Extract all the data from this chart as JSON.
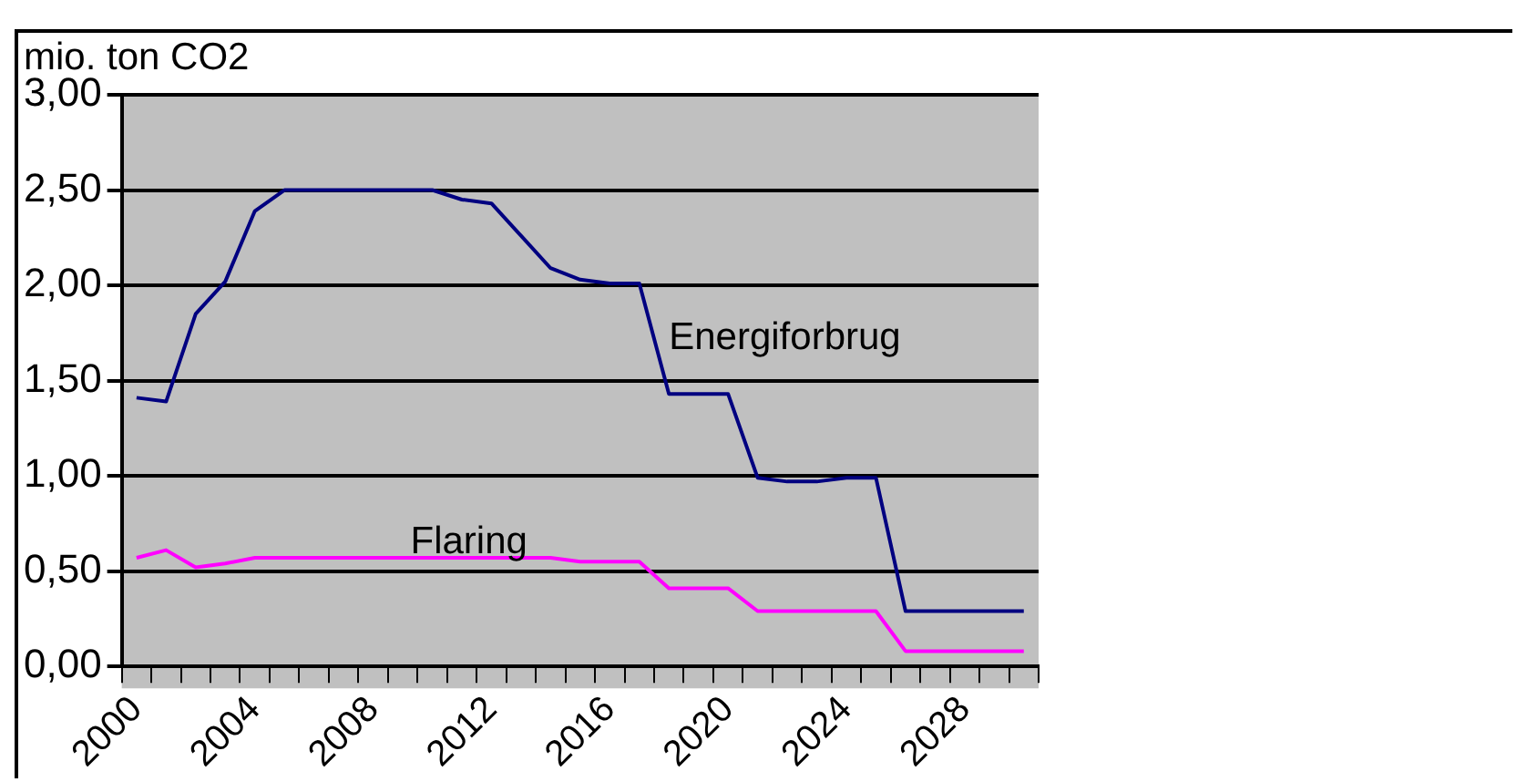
{
  "chart_data": {
    "type": "line",
    "ylabel": "mio. ton CO2",
    "categories": [
      "2000",
      null,
      null,
      null,
      "2004",
      null,
      null,
      null,
      "2008",
      null,
      null,
      null,
      "2012",
      null,
      null,
      null,
      "2016",
      null,
      null,
      null,
      "2020",
      null,
      null,
      null,
      "2024",
      null,
      null,
      null,
      "2028",
      null,
      null
    ],
    "series": [
      {
        "name": "Energiforbrug",
        "color": "#000080",
        "values": [
          1.41,
          1.39,
          1.85,
          2.02,
          2.39,
          2.5,
          2.5,
          2.5,
          2.5,
          2.5,
          2.5,
          2.45,
          2.43,
          2.26,
          2.09,
          2.03,
          2.01,
          2.01,
          1.43,
          1.43,
          1.43,
          0.99,
          0.97,
          0.97,
          0.99,
          0.99,
          0.29,
          0.29,
          0.29,
          0.29,
          0.29
        ]
      },
      {
        "name": "Flaring",
        "color": "#ff00ff",
        "values": [
          0.57,
          0.61,
          0.52,
          0.54,
          0.57,
          0.57,
          0.57,
          0.57,
          0.57,
          0.57,
          0.57,
          0.57,
          0.57,
          0.57,
          0.57,
          0.55,
          0.55,
          0.55,
          0.41,
          0.41,
          0.41,
          0.29,
          0.29,
          0.29,
          0.29,
          0.29,
          0.08,
          0.08,
          0.08,
          0.08,
          0.08
        ]
      }
    ],
    "ylim": [
      0,
      3
    ],
    "yticks": [
      {
        "value": 0,
        "label": "0,00"
      },
      {
        "value": 0.5,
        "label": "0,50"
      },
      {
        "value": 1,
        "label": "1,00"
      },
      {
        "value": 1.5,
        "label": "1,50"
      },
      {
        "value": 2,
        "label": "2,00"
      },
      {
        "value": 2.5,
        "label": "2,50"
      },
      {
        "value": 3,
        "label": "3,00"
      }
    ],
    "grid": "y",
    "marker": "none",
    "line_style": "solid"
  }
}
